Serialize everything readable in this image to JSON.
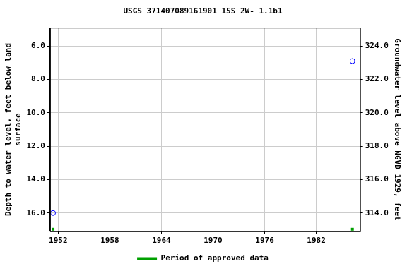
{
  "chart_data": {
    "type": "scatter",
    "title": "USGS 371407089161901 15S 2W- 1.1b1",
    "x_label": null,
    "y_label": [
      "Depth to water level, feet below land",
      "surface"
    ],
    "y2_label": "Groundwater level above NGVD 1929, feet",
    "x": [
      1951.4,
      1986.2
    ],
    "series": [
      {
        "values": [
          16.0,
          6.9
        ],
        "color": "#0000ff",
        "marker": "circle"
      }
    ],
    "approved_periods": {
      "name": "Period of approved data",
      "color": "#00a000",
      "x": [
        1951.4,
        1986.2
      ]
    },
    "xlim": [
      1951.06,
      1987.1
    ],
    "xticks": [
      1952,
      1958,
      1964,
      1970,
      1976,
      1982
    ],
    "ylim": [
      17.1,
      4.9
    ],
    "yticks": [
      {
        "value": 6,
        "label": "6.0"
      },
      {
        "value": 8,
        "label": "8.0"
      },
      {
        "value": 10,
        "label": "10.0"
      },
      {
        "value": 12,
        "label": "12.0"
      },
      {
        "value": 14,
        "label": "14.0"
      },
      {
        "value": 16,
        "label": "16.0"
      }
    ],
    "y2lim": [
      312.9,
      325.1
    ],
    "y2ticks": [
      {
        "value": 314,
        "label": "314.0"
      },
      {
        "value": 316,
        "label": "316.0"
      },
      {
        "value": 318,
        "label": "318.0"
      },
      {
        "value": 320,
        "label": "320.0"
      },
      {
        "value": 322,
        "label": "322.0"
      },
      {
        "value": 324,
        "label": "324.0"
      }
    ],
    "grid": true,
    "legend": "bottom"
  }
}
